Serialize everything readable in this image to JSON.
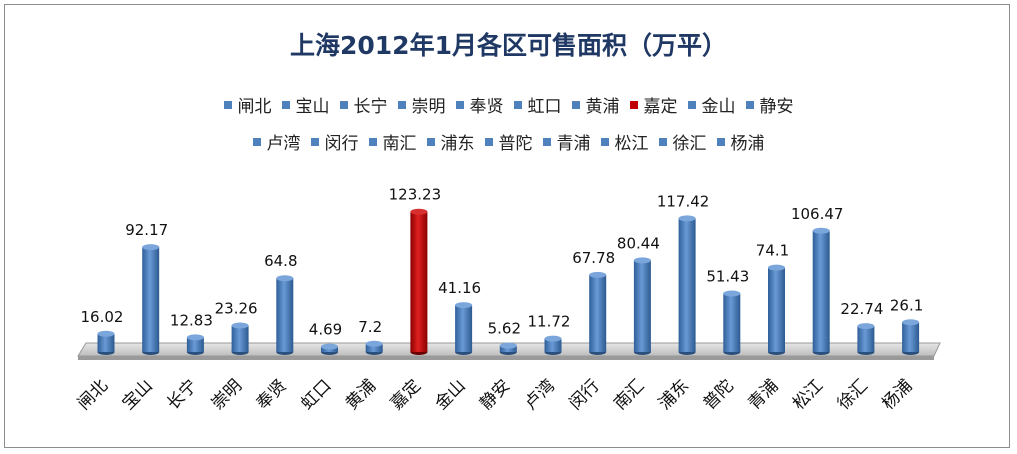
{
  "chart_data": {
    "type": "bar",
    "title": "上海2012年1月各区可售面积（万平）",
    "categories": [
      "闸北",
      "宝山",
      "长宁",
      "崇明",
      "奉贤",
      "虹口",
      "黄浦",
      "嘉定",
      "金山",
      "静安",
      "卢湾",
      "闵行",
      "南汇",
      "浦东",
      "普陀",
      "青浦",
      "松江",
      "徐汇",
      "杨浦"
    ],
    "values": [
      16.02,
      92.17,
      12.83,
      23.26,
      64.8,
      4.69,
      7.2,
      123.23,
      41.16,
      5.62,
      11.72,
      67.78,
      80.44,
      117.42,
      51.43,
      74.1,
      106.47,
      22.74,
      26.1
    ],
    "value_labels": [
      "16.02",
      "92.17",
      "12.83",
      "23.26",
      "64.8",
      "4.69",
      "7.2",
      "123.23",
      "41.16",
      "5.62",
      "11.72",
      "67.78",
      "80.44",
      "117.42",
      "51.43",
      "74.1",
      "106.47",
      "22.74",
      "26.1"
    ],
    "ylim": [
      0,
      130
    ],
    "grid": false,
    "legend": "top",
    "colors": {
      "default": "#4f81bd",
      "highlight": "#c00000",
      "title": "#1f3864"
    },
    "highlight_category": "嘉定"
  }
}
